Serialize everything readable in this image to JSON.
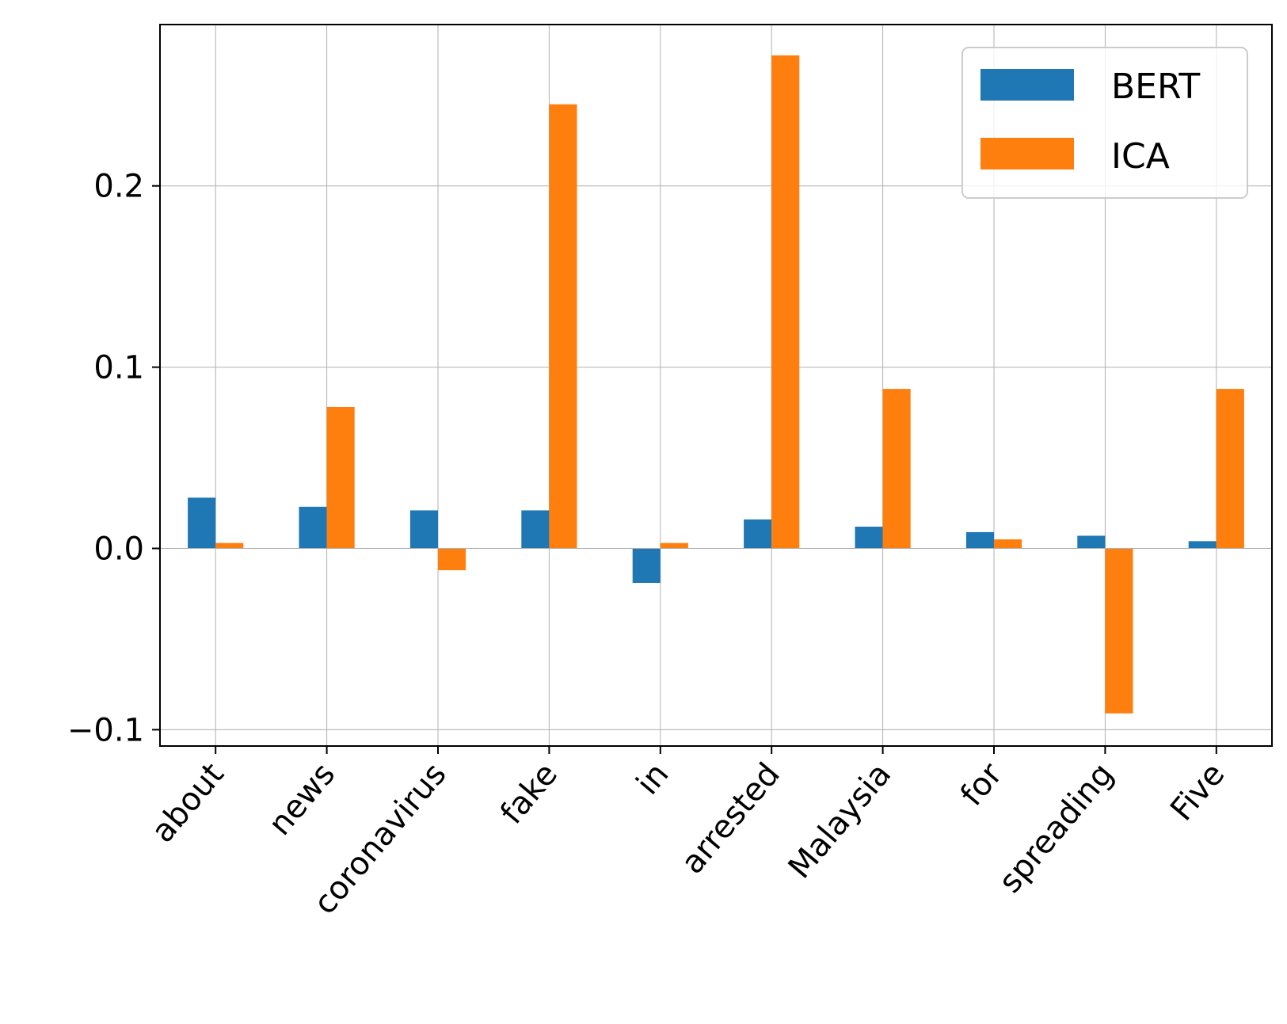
{
  "chart_data": {
    "type": "bar",
    "categories": [
      "about",
      "news",
      "coronavirus",
      "fake",
      "in",
      "arrested",
      "Malaysia",
      "for",
      "spreading",
      "Five"
    ],
    "series": [
      {
        "name": "BERT",
        "color": "#1f77b4",
        "values": [
          0.028,
          0.023,
          0.021,
          0.021,
          -0.019,
          0.016,
          0.012,
          0.009,
          0.007,
          0.004
        ]
      },
      {
        "name": "ICA",
        "color": "#ff7f0e",
        "values": [
          0.003,
          0.078,
          -0.012,
          0.245,
          0.003,
          0.272,
          0.088,
          0.005,
          -0.091,
          0.088
        ]
      }
    ],
    "title": "",
    "xlabel": "",
    "ylabel": "",
    "ylim": [
      -0.109,
      0.289
    ],
    "yticks": [
      -0.1,
      0.0,
      0.1,
      0.2
    ],
    "ytick_labels": [
      "−0.1",
      "0.0",
      "0.1",
      "0.2"
    ],
    "grid": true,
    "legend_position": "top-right"
  }
}
